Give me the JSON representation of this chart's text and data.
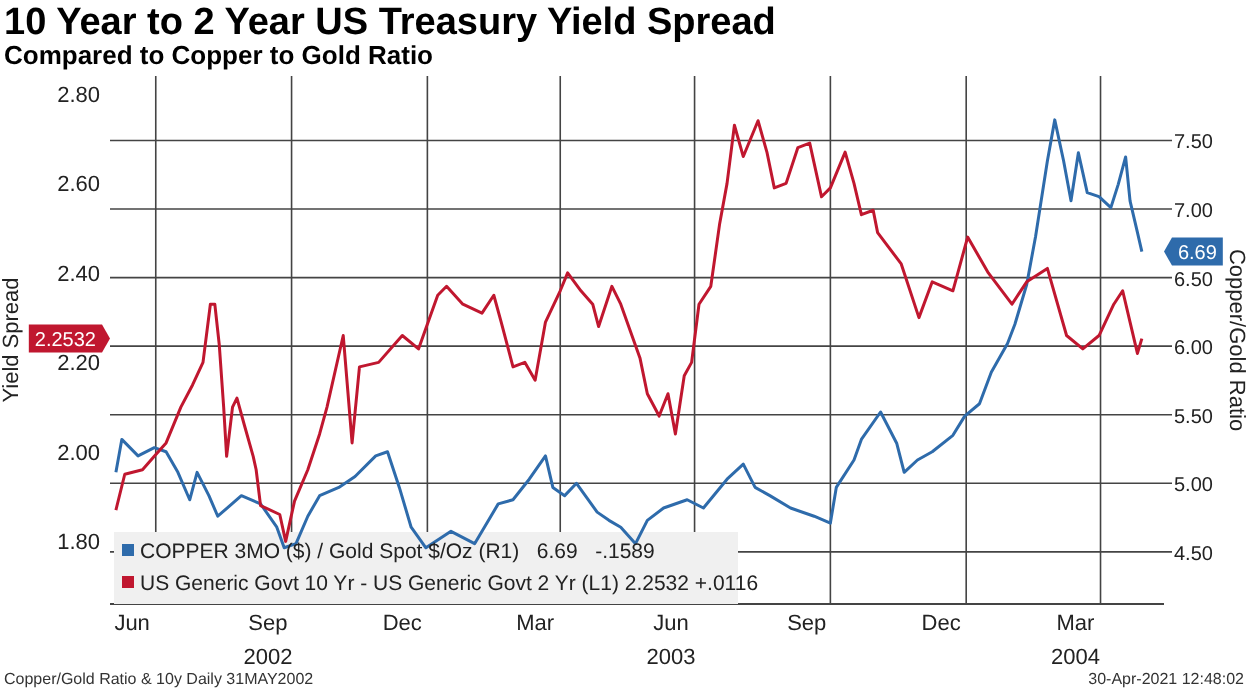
{
  "chart_data": {
    "type": "line",
    "title": "10 Year to 2 Year US Treasury Yield Spread",
    "subtitle": "Compared to Copper to Gold Ratio",
    "ylabel": "Yield Spread",
    "y2label": "Copper/Gold Ratio",
    "annotations": [
      "Copper/Gold Ratio & 10y  Daily 31MAY2002",
      "30-Apr-2021 12:48:02",
      {
        "text": "2.2532",
        "y": 2.2532
      }
    ],
    "xlim": [
      "2002-05-31",
      "2004-05-14"
    ],
    "xticks": [
      {
        "value": "2002-06-15",
        "label": "Jun"
      },
      {
        "value": "2002-07-01",
        "label": null
      },
      {
        "value": "2002-09-15",
        "label": "Sep\n2002"
      },
      {
        "value": "2002-10-01",
        "label": null
      },
      {
        "value": "2002-12-15",
        "label": "Dec"
      },
      {
        "value": "2003-01-01",
        "label": null
      },
      {
        "value": "2003-03-15",
        "label": "Mar"
      },
      {
        "value": "2003-04-01",
        "label": null
      },
      {
        "value": "2003-06-15",
        "label": "Jun\n2003"
      },
      {
        "value": "2003-07-01",
        "label": null
      },
      {
        "value": "2003-09-15",
        "label": "Sep"
      },
      {
        "value": "2003-10-01",
        "label": null
      },
      {
        "value": "2003-12-15",
        "label": "Dec"
      },
      {
        "value": "2004-01-01",
        "label": null
      },
      {
        "value": "2004-03-15",
        "label": "Mar\n2004"
      },
      {
        "value": "2004-04-01",
        "label": null
      }
    ],
    "ylim": [
      1.66,
      2.84
    ],
    "yticks": [
      {
        "value": 1.8,
        "label": "1.80"
      },
      {
        "value": 2.0,
        "label": "2.00"
      },
      {
        "value": 2.2,
        "label": "2.20"
      },
      {
        "value": 2.4,
        "label": "2.40"
      },
      {
        "value": 2.6,
        "label": "2.60"
      },
      {
        "value": 2.8,
        "label": "2.80"
      }
    ],
    "y2lim": [
      4.12,
      7.97
    ],
    "y2ticks": [
      {
        "value": 4.5,
        "label": "4.50"
      },
      {
        "value": 5.0,
        "label": "5.00"
      },
      {
        "value": 5.5,
        "label": "5.50"
      },
      {
        "value": 6.0,
        "label": "6.00"
      },
      {
        "value": 6.5,
        "label": "6.50"
      },
      {
        "value": 7.0,
        "label": "7.00"
      },
      {
        "value": 7.5,
        "label": "7.50"
      }
    ],
    "grid": true,
    "legend": "bottom left",
    "line_style": "solid",
    "marker": "none",
    "series": [
      {
        "name": "COPPER 3MO ($) / Gold Spot $/Oz (R1)   6.69   -.1589",
        "color": "#2e6bab",
        "axis": "y2",
        "x": [
          "2002-06-04",
          "2002-06-08",
          "2002-06-19",
          "2002-06-30",
          "2002-07-08",
          "2002-07-16",
          "2002-07-24",
          "2002-07-29",
          "2002-08-06",
          "2002-08-12",
          "2002-08-28",
          "2002-09-10",
          "2002-09-21",
          "2002-09-26",
          "2002-10-04",
          "2002-10-12",
          "2002-10-20",
          "2002-11-02",
          "2002-11-13",
          "2002-11-27",
          "2002-12-05",
          "2002-12-13",
          "2002-12-21",
          "2002-12-31",
          "2003-01-17",
          "2003-02-02",
          "2003-02-18",
          "2003-02-28",
          "2003-03-11",
          "2003-03-22",
          "2003-03-27",
          "2003-04-04",
          "2003-04-12",
          "2003-04-26",
          "2003-05-04",
          "2003-05-12",
          "2003-05-22",
          "2003-05-30",
          "2003-06-10",
          "2003-06-26",
          "2003-07-07",
          "2003-07-23",
          "2003-08-03",
          "2003-08-11",
          "2003-08-21",
          "2003-09-04",
          "2003-09-20",
          "2003-10-01",
          "2003-10-05",
          "2003-10-17",
          "2003-10-22",
          "2003-11-04",
          "2003-11-15",
          "2003-11-20",
          "2003-11-29",
          "2003-12-09",
          "2003-12-23",
          "2003-12-31",
          "2004-01-10",
          "2004-01-18",
          "2004-01-29",
          "2004-02-03",
          "2004-02-11",
          "2004-02-17",
          "2004-02-25",
          "2004-03-01",
          "2004-03-07",
          "2004-03-12",
          "2004-03-17",
          "2004-03-23",
          "2004-03-31",
          "2004-04-08",
          "2004-04-13",
          "2004-04-18",
          "2004-04-21",
          "2004-04-26",
          "2004-04-29"
        ],
        "values": [
          5.08,
          5.32,
          5.2,
          5.26,
          5.23,
          5.08,
          4.88,
          5.08,
          4.91,
          4.76,
          4.91,
          4.85,
          4.68,
          4.53,
          4.56,
          4.76,
          4.91,
          4.97,
          5.05,
          5.2,
          5.23,
          4.97,
          4.68,
          4.53,
          4.65,
          4.56,
          4.85,
          4.88,
          5.03,
          5.2,
          4.97,
          4.91,
          5.0,
          4.79,
          4.73,
          4.68,
          4.56,
          4.73,
          4.82,
          4.88,
          4.82,
          5.03,
          5.14,
          4.97,
          4.91,
          4.82,
          4.76,
          4.71,
          4.97,
          5.17,
          5.32,
          5.52,
          5.29,
          5.08,
          5.17,
          5.23,
          5.35,
          5.49,
          5.58,
          5.81,
          6.02,
          6.16,
          6.45,
          6.8,
          7.35,
          7.65,
          7.35,
          7.06,
          7.41,
          7.12,
          7.09,
          7.01,
          7.18,
          7.38,
          7.06,
          6.83,
          6.69
        ],
        "value_labels": [
          null,
          null,
          null,
          null,
          null,
          null,
          null,
          null,
          null,
          null,
          null,
          null,
          null,
          null,
          null,
          null,
          null,
          null,
          null,
          null,
          null,
          null,
          null,
          null,
          null,
          null,
          null,
          null,
          null,
          null,
          null,
          null,
          null,
          null,
          null,
          null,
          null,
          null,
          null,
          null,
          null,
          null,
          null,
          null,
          null,
          null,
          null,
          null,
          null,
          null,
          null,
          null,
          null,
          null,
          null,
          null,
          null,
          null,
          null,
          null,
          null,
          null,
          null,
          null,
          null,
          null,
          null,
          null,
          null,
          null,
          null,
          null,
          null,
          null,
          null,
          null,
          "6.69"
        ]
      },
      {
        "name": "US Generic Govt 10 Yr - US Generic Govt 2 Yr (L1) 2.2532 +.0116",
        "color": "#c0172f",
        "axis": "y",
        "x": [
          "2002-06-04",
          "2002-06-10",
          "2002-06-22",
          "2002-06-30",
          "2002-07-08",
          "2002-07-18",
          "2002-07-26",
          "2002-08-02",
          "2002-08-07",
          "2002-08-10",
          "2002-08-13",
          "2002-08-16",
          "2002-08-18",
          "2002-08-22",
          "2002-08-25",
          "2002-08-30",
          "2002-09-05",
          "2002-09-07",
          "2002-09-10",
          "2002-09-23",
          "2002-09-27",
          "2002-10-03",
          "2002-10-12",
          "2002-10-20",
          "2002-10-25",
          "2002-11-05",
          "2002-11-11",
          "2002-11-16",
          "2002-11-29",
          "2002-12-15",
          "2002-12-26",
          "2003-01-08",
          "2003-01-14",
          "2003-01-25",
          "2003-02-07",
          "2003-02-15",
          "2003-02-20",
          "2003-02-28",
          "2003-03-08",
          "2003-03-15",
          "2003-03-22",
          "2003-04-01",
          "2003-04-06",
          "2003-04-15",
          "2003-04-23",
          "2003-04-27",
          "2003-05-06",
          "2003-05-12",
          "2003-05-25",
          "2003-05-30",
          "2003-06-07",
          "2003-06-13",
          "2003-06-18",
          "2003-06-24",
          "2003-06-29",
          "2003-07-04",
          "2003-07-12",
          "2003-07-18",
          "2003-07-23",
          "2003-07-28",
          "2003-08-03",
          "2003-08-13",
          "2003-08-19",
          "2003-08-24",
          "2003-09-01",
          "2003-09-09",
          "2003-09-17",
          "2003-09-25",
          "2003-10-01",
          "2003-10-11",
          "2003-10-17",
          "2003-10-22",
          "2003-10-30",
          "2003-11-02",
          "2003-11-18",
          "2003-11-30",
          "2003-12-09",
          "2003-12-23",
          "2004-01-02",
          "2004-01-16",
          "2004-02-01",
          "2004-02-11",
          "2004-02-25",
          "2004-03-09",
          "2004-03-20",
          "2004-03-31",
          "2004-04-10",
          "2004-04-16",
          "2004-04-21",
          "2004-04-26",
          "2004-04-29"
        ],
        "values": [
          1.87,
          1.95,
          1.96,
          1.99,
          2.02,
          2.1,
          2.15,
          2.2,
          2.33,
          2.33,
          2.24,
          2.1,
          1.99,
          2.1,
          2.12,
          2.06,
          1.99,
          1.96,
          1.88,
          1.86,
          1.8,
          1.89,
          1.96,
          2.04,
          2.1,
          2.26,
          2.02,
          2.19,
          2.2,
          2.26,
          2.23,
          2.35,
          2.37,
          2.33,
          2.31,
          2.35,
          2.29,
          2.19,
          2.2,
          2.16,
          2.29,
          2.36,
          2.4,
          2.36,
          2.33,
          2.28,
          2.37,
          2.33,
          2.21,
          2.13,
          2.08,
          2.13,
          2.04,
          2.17,
          2.2,
          2.33,
          2.37,
          2.51,
          2.6,
          2.73,
          2.66,
          2.74,
          2.67,
          2.59,
          2.6,
          2.68,
          2.69,
          2.57,
          2.59,
          2.67,
          2.6,
          2.53,
          2.54,
          2.49,
          2.42,
          2.3,
          2.38,
          2.36,
          2.48,
          2.4,
          2.33,
          2.38,
          2.41,
          2.26,
          2.23,
          2.26,
          2.33,
          2.36,
          2.29,
          2.22,
          2.2532
        ],
        "value_labels": [
          null,
          null,
          null,
          null,
          null,
          null,
          null,
          null,
          null,
          null,
          null,
          null,
          null,
          null,
          null,
          null,
          null,
          null,
          null,
          null,
          null,
          null,
          null,
          null,
          null,
          null,
          null,
          null,
          null,
          null,
          null,
          null,
          null,
          null,
          null,
          null,
          null,
          null,
          null,
          null,
          null,
          null,
          null,
          null,
          null,
          null,
          null,
          null,
          null,
          null,
          null,
          null,
          null,
          null,
          null,
          null,
          null,
          null,
          null,
          null,
          null,
          null,
          null,
          null,
          null,
          null,
          null,
          null,
          null,
          null,
          null,
          null,
          null,
          null,
          null,
          null,
          null,
          null,
          null,
          null,
          null,
          null,
          null,
          null,
          null,
          null,
          null,
          null,
          null,
          null,
          null
        ]
      }
    ]
  }
}
